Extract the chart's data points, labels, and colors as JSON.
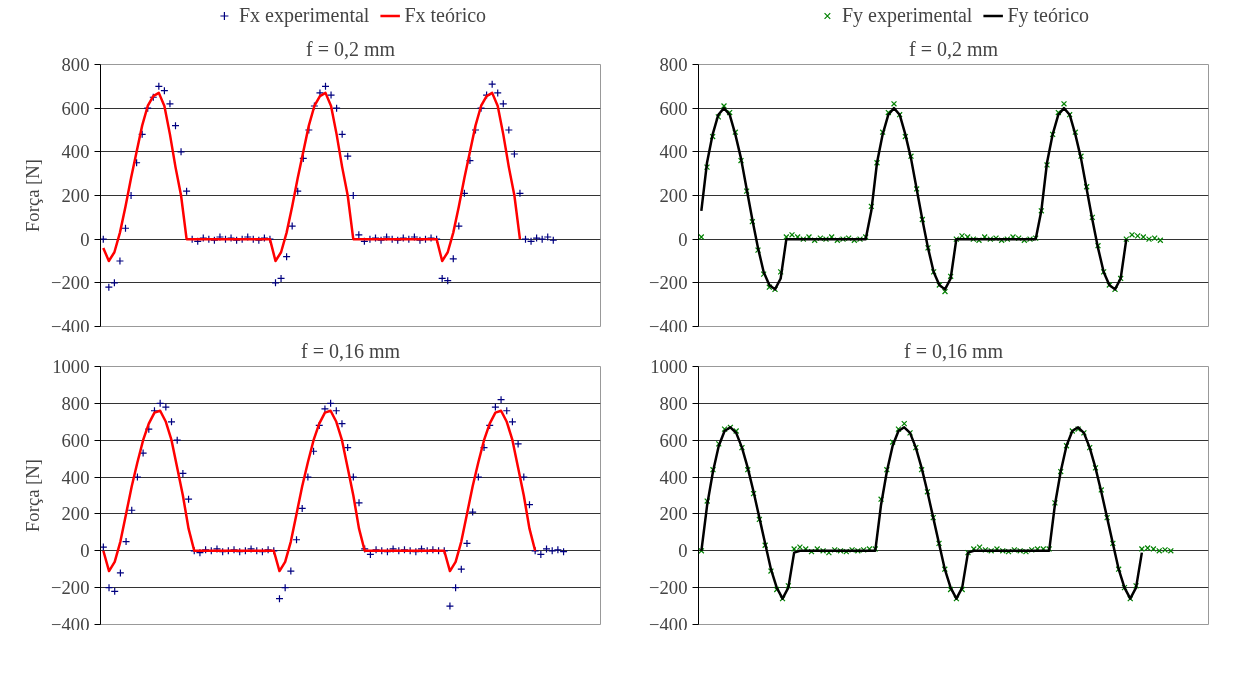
{
  "chart_data": [
    {
      "type": "scatter",
      "title": "f = 0,2 mm",
      "ylabel": "Força [N]",
      "ylim": [
        -400,
        800
      ],
      "yticks": [
        -400,
        -200,
        0,
        200,
        400,
        600,
        800
      ],
      "grid": "y",
      "legend": "top",
      "tick_labels": "y",
      "categories": [
        null,
        null,
        null,
        null,
        null,
        null,
        null,
        null,
        null,
        null,
        null,
        null,
        null,
        null,
        null,
        null,
        null,
        null,
        null,
        null,
        null,
        null,
        null,
        null,
        null,
        null,
        null,
        null,
        null,
        null,
        null,
        null,
        null,
        null,
        null,
        null,
        null,
        null,
        null,
        null,
        null,
        null,
        null,
        null,
        null,
        null,
        null,
        null,
        null,
        null,
        null,
        null,
        null,
        null,
        null,
        null,
        null,
        null,
        null,
        null,
        null,
        null,
        null,
        null,
        null,
        null,
        null,
        null,
        null,
        null,
        null,
        null,
        null,
        null,
        null,
        null,
        null,
        null,
        null,
        null,
        null,
        null,
        null,
        null,
        null,
        null,
        null,
        null,
        null,
        null
      ],
      "series": [
        {
          "name": "Fx experimental",
          "marker": "cross",
          "color": "#000080",
          "values": [
            0,
            -220,
            -200,
            -100,
            50,
            200,
            350,
            480,
            600,
            650,
            700,
            680,
            620,
            520,
            400,
            220,
            0,
            -10,
            5,
            0,
            -5,
            10,
            0,
            5,
            -5,
            0,
            10,
            0,
            -5,
            5,
            0,
            -200,
            -180,
            -80,
            60,
            220,
            370,
            500,
            610,
            670,
            700,
            660,
            600,
            480,
            380,
            200,
            20,
            -10,
            0,
            5,
            -5,
            10,
            0,
            -5,
            5,
            0,
            10,
            -5,
            0,
            5,
            0,
            -180,
            -190,
            -90,
            60,
            210,
            360,
            500,
            600,
            660,
            710,
            670,
            620,
            500,
            390,
            210,
            0,
            -10,
            5,
            0,
            10,
            -5,
            null,
            null,
            null,
            null,
            null,
            null,
            null,
            null
          ]
        },
        {
          "name": "Fx teórico",
          "type": "line",
          "color": "#ff0000",
          "values": [
            -40,
            -100,
            -60,
            30,
            150,
            280,
            400,
            520,
            610,
            655,
            670,
            610,
            480,
            330,
            200,
            0,
            0,
            0,
            0,
            0,
            0,
            0,
            0,
            0,
            0,
            0,
            0,
            0,
            0,
            0,
            0,
            -100,
            -60,
            30,
            150,
            280,
            400,
            520,
            610,
            655,
            670,
            610,
            480,
            330,
            200,
            0,
            0,
            0,
            0,
            0,
            0,
            0,
            0,
            0,
            0,
            0,
            0,
            0,
            0,
            0,
            0,
            -100,
            -60,
            30,
            150,
            280,
            400,
            520,
            610,
            655,
            670,
            610,
            480,
            330,
            200,
            0,
            null,
            null,
            null,
            null,
            null,
            null,
            null,
            null,
            null,
            null,
            null,
            null,
            null,
            null
          ]
        }
      ]
    },
    {
      "type": "scatter",
      "title": "f = 0,2 mm",
      "ylim": [
        -400,
        800
      ],
      "yticks": [
        -400,
        -200,
        0,
        200,
        400,
        600,
        800
      ],
      "grid": "y",
      "legend": "top",
      "tick_labels": "y",
      "categories": [
        null,
        null,
        null,
        null,
        null,
        null,
        null,
        null,
        null,
        null,
        null,
        null,
        null,
        null,
        null,
        null,
        null,
        null,
        null,
        null,
        null,
        null,
        null,
        null,
        null,
        null,
        null,
        null,
        null,
        null,
        null,
        null,
        null,
        null,
        null,
        null,
        null,
        null,
        null,
        null,
        null,
        null,
        null,
        null,
        null,
        null,
        null,
        null,
        null,
        null,
        null,
        null,
        null,
        null,
        null,
        null,
        null,
        null,
        null,
        null,
        null,
        null,
        null,
        null,
        null,
        null,
        null,
        null,
        null,
        null,
        null,
        null,
        null,
        null,
        null,
        null,
        null,
        null,
        null,
        null,
        null,
        null,
        null,
        null,
        null,
        null,
        null,
        null,
        null,
        null
      ],
      "series": [
        {
          "name": "Fy experimental",
          "marker": "x",
          "color": "#008000",
          "values": [
            10,
            330,
            470,
            560,
            610,
            580,
            490,
            360,
            220,
            80,
            -50,
            -160,
            -220,
            -230,
            -150,
            10,
            20,
            10,
            0,
            10,
            -5,
            5,
            0,
            10,
            -5,
            0,
            5,
            -5,
            0,
            10,
            150,
            350,
            490,
            580,
            620,
            570,
            470,
            380,
            230,
            90,
            -40,
            -150,
            -210,
            -240,
            -170,
            0,
            15,
            10,
            0,
            -5,
            10,
            0,
            5,
            -5,
            0,
            10,
            5,
            -5,
            0,
            5,
            130,
            340,
            480,
            580,
            620,
            570,
            490,
            380,
            240,
            100,
            -30,
            -150,
            -210,
            -230,
            -180,
            0,
            20,
            15,
            10,
            0,
            5,
            -5,
            null,
            null,
            null,
            null,
            null,
            null,
            null,
            null
          ]
        },
        {
          "name": "Fy teórico",
          "type": "line",
          "color": "#000000",
          "values": [
            130,
            350,
            480,
            570,
            600,
            570,
            480,
            370,
            230,
            90,
            -40,
            -150,
            -210,
            -230,
            -180,
            0,
            0,
            0,
            0,
            0,
            0,
            0,
            0,
            0,
            0,
            0,
            0,
            0,
            0,
            0,
            130,
            350,
            480,
            570,
            600,
            570,
            480,
            370,
            230,
            90,
            -40,
            -150,
            -210,
            -230,
            -180,
            0,
            0,
            0,
            0,
            0,
            0,
            0,
            0,
            0,
            0,
            0,
            0,
            0,
            0,
            0,
            130,
            350,
            480,
            570,
            600,
            570,
            480,
            370,
            230,
            90,
            -40,
            -150,
            -210,
            -230,
            -180,
            0,
            null,
            null,
            null,
            null,
            null,
            null,
            null,
            null,
            null,
            null,
            null,
            null,
            null,
            null
          ]
        }
      ]
    },
    {
      "type": "scatter",
      "title": "f = 0,16 mm",
      "ylabel": "Força [N]",
      "ylim": [
        -400,
        1000
      ],
      "yticks": [
        -400,
        -200,
        0,
        200,
        400,
        600,
        800,
        1000
      ],
      "grid": "y",
      "tick_labels": "y",
      "categories": [
        null,
        null,
        null,
        null,
        null,
        null,
        null,
        null,
        null,
        null,
        null,
        null,
        null,
        null,
        null,
        null,
        null,
        null,
        null,
        null,
        null,
        null,
        null,
        null,
        null,
        null,
        null,
        null,
        null,
        null,
        null,
        null,
        null,
        null,
        null,
        null,
        null,
        null,
        null,
        null,
        null,
        null,
        null,
        null,
        null,
        null,
        null,
        null,
        null,
        null,
        null,
        null,
        null,
        null,
        null,
        null,
        null,
        null,
        null,
        null,
        null,
        null,
        null,
        null,
        null,
        null,
        null,
        null,
        null,
        null,
        null,
        null,
        null,
        null,
        null,
        null,
        null,
        null,
        null,
        null,
        null,
        null,
        null,
        null,
        null,
        null,
        null,
        null
      ],
      "series": [
        {
          "marker": "cross",
          "color": "#000080",
          "values": [
            20,
            -200,
            -220,
            -120,
            50,
            220,
            400,
            530,
            660,
            760,
            800,
            780,
            700,
            600,
            420,
            280,
            0,
            -10,
            5,
            0,
            10,
            -5,
            0,
            5,
            -5,
            0,
            10,
            0,
            -5,
            5,
            0,
            -260,
            -200,
            -110,
            60,
            230,
            400,
            540,
            680,
            770,
            800,
            760,
            690,
            560,
            400,
            260,
            10,
            -20,
            5,
            0,
            -5,
            10,
            0,
            5,
            0,
            -5,
            10,
            0,
            5,
            0,
            0,
            -300,
            -200,
            -100,
            40,
            210,
            400,
            560,
            680,
            780,
            820,
            760,
            700,
            580,
            400,
            250,
            0,
            -20,
            10,
            0,
            5,
            -5,
            null,
            null,
            null,
            null,
            null,
            null
          ]
        },
        {
          "type": "line",
          "color": "#ff0000",
          "values": [
            0,
            -110,
            -60,
            50,
            200,
            350,
            480,
            600,
            690,
            750,
            760,
            700,
            600,
            450,
            300,
            120,
            0,
            0,
            0,
            0,
            0,
            0,
            0,
            0,
            0,
            0,
            0,
            0,
            0,
            0,
            0,
            -110,
            -60,
            50,
            200,
            350,
            480,
            600,
            690,
            750,
            760,
            700,
            600,
            450,
            300,
            120,
            0,
            0,
            0,
            0,
            0,
            0,
            0,
            0,
            0,
            0,
            0,
            0,
            0,
            0,
            0,
            -110,
            -60,
            50,
            200,
            350,
            480,
            600,
            690,
            750,
            760,
            700,
            600,
            450,
            300,
            120,
            0,
            null,
            null,
            null,
            null,
            null,
            null,
            null,
            null,
            null,
            null,
            null
          ]
        }
      ]
    },
    {
      "type": "scatter",
      "title": "f = 0,16 mm",
      "ylim": [
        -400,
        1000
      ],
      "yticks": [
        -400,
        -200,
        0,
        200,
        400,
        600,
        800,
        1000
      ],
      "grid": "y",
      "tick_labels": "y",
      "categories": [
        null,
        null,
        null,
        null,
        null,
        null,
        null,
        null,
        null,
        null,
        null,
        null,
        null,
        null,
        null,
        null,
        null,
        null,
        null,
        null,
        null,
        null,
        null,
        null,
        null,
        null,
        null,
        null,
        null,
        null,
        null,
        null,
        null,
        null,
        null,
        null,
        null,
        null,
        null,
        null,
        null,
        null,
        null,
        null,
        null,
        null,
        null,
        null,
        null,
        null,
        null,
        null,
        null,
        null,
        null,
        null,
        null,
        null,
        null,
        null,
        null,
        null,
        null,
        null,
        null,
        null,
        null,
        null,
        null,
        null,
        null,
        null,
        null,
        null,
        null,
        null,
        null,
        null,
        null,
        null,
        null,
        null,
        null,
        null,
        null,
        null,
        null,
        null
      ],
      "series": [
        {
          "marker": "x",
          "color": "#008000",
          "values": [
            0,
            270,
            440,
            580,
            660,
            670,
            650,
            560,
            440,
            310,
            170,
            30,
            -110,
            -210,
            -260,
            -190,
            10,
            20,
            10,
            -5,
            10,
            0,
            -10,
            5,
            0,
            -5,
            5,
            0,
            5,
            10,
            10,
            280,
            440,
            590,
            660,
            690,
            640,
            560,
            440,
            320,
            180,
            40,
            -100,
            -210,
            -260,
            -210,
            -10,
            10,
            20,
            5,
            0,
            10,
            0,
            -5,
            5,
            0,
            -5,
            5,
            10,
            10,
            10,
            260,
            430,
            570,
            650,
            660,
            640,
            560,
            450,
            330,
            180,
            40,
            -100,
            -200,
            -260,
            -190,
            10,
            15,
            10,
            0,
            5,
            0,
            null,
            null,
            null,
            null,
            null,
            null
          ]
        },
        {
          "type": "line",
          "color": "#000000",
          "values": [
            0,
            250,
            430,
            570,
            650,
            670,
            640,
            560,
            450,
            320,
            180,
            40,
            -100,
            -200,
            -260,
            -200,
            -10,
            0,
            0,
            0,
            0,
            0,
            0,
            0,
            0,
            0,
            0,
            0,
            0,
            0,
            0,
            250,
            430,
            570,
            650,
            670,
            640,
            560,
            450,
            320,
            180,
            40,
            -100,
            -200,
            -260,
            -200,
            -10,
            0,
            0,
            0,
            0,
            0,
            0,
            0,
            0,
            0,
            0,
            0,
            0,
            0,
            0,
            250,
            430,
            570,
            650,
            670,
            640,
            560,
            450,
            320,
            180,
            40,
            -100,
            -200,
            -260,
            -200,
            -10,
            null,
            null,
            null,
            null,
            null,
            null,
            null,
            null,
            null,
            null,
            null
          ]
        }
      ]
    }
  ]
}
